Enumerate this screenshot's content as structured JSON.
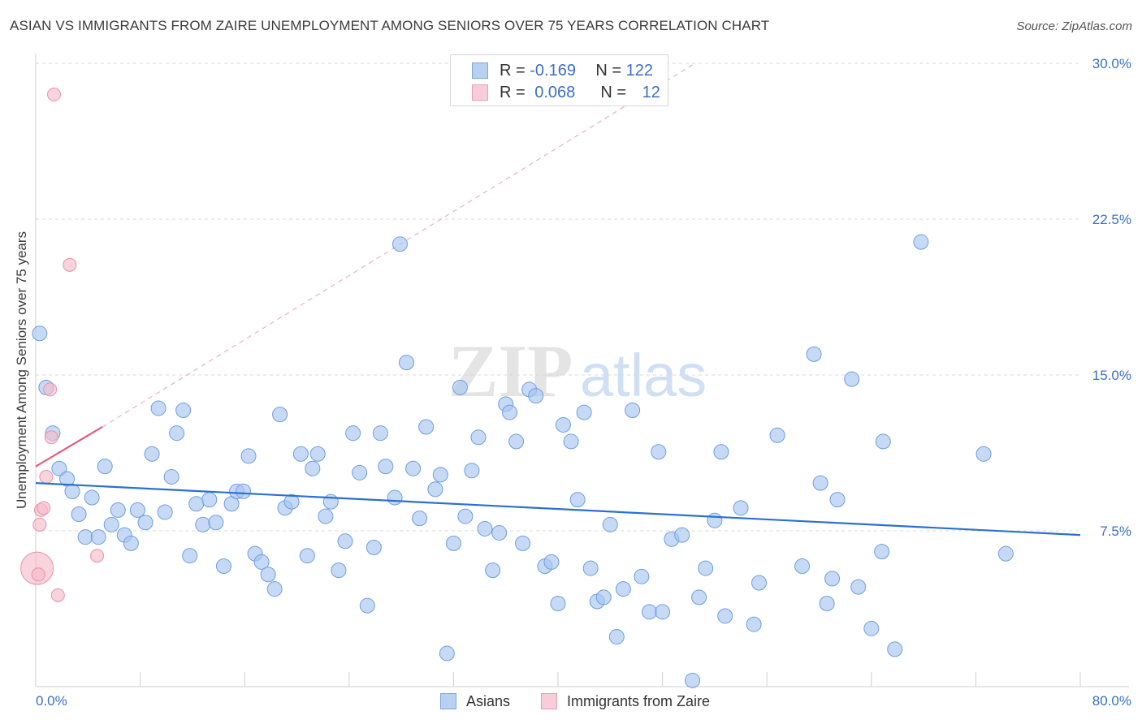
{
  "header": {
    "title": "ASIAN VS IMMIGRANTS FROM ZAIRE UNEMPLOYMENT AMONG SENIORS OVER 75 YEARS CORRELATION CHART",
    "source": "Source: ZipAtlas.com"
  },
  "watermark": {
    "zip": "ZIP",
    "atlas": "atlas"
  },
  "legend": {
    "asians": {
      "r_label": "R =",
      "r_value": "-0.169",
      "n_label": "N =",
      "n_value": "122"
    },
    "zaire": {
      "r_label": "R =",
      "r_value": "0.068",
      "n_label": "N =",
      "n_value": "12"
    }
  },
  "bottom_legend": {
    "asians": "Asians",
    "zaire": "Immigrants from Zaire"
  },
  "colors": {
    "asians_fill": "#a9c6ef",
    "asians_stroke": "#6d9ee0",
    "asians_line": "#2b70d0",
    "zaire_fill": "#f6bccb",
    "zaire_stroke": "#e892a9",
    "zaire_line": "#e0607e",
    "grid": "#d9d9d9",
    "tick_label": "#3a70c4"
  },
  "chart_data": {
    "type": "scatter",
    "title": "ASIAN VS IMMIGRANTS FROM ZAIRE UNEMPLOYMENT AMONG SENIORS OVER 75 YEARS CORRELATION CHART",
    "xlabel": "",
    "ylabel": "Unemployment Among Seniors over 75 years",
    "xlim": [
      0,
      80
    ],
    "ylim": [
      0,
      30
    ],
    "x_tick_labels": [
      "0.0%",
      "80.0%"
    ],
    "y_ticks": [
      7.5,
      15.0,
      22.5,
      30.0
    ],
    "y_tick_labels": [
      "7.5%",
      "15.0%",
      "22.5%",
      "30.0%"
    ],
    "grid": true,
    "legend_position": "top-center",
    "series": [
      {
        "name": "Asians",
        "r": -0.169,
        "n": 122,
        "trend": {
          "x": [
            0,
            80
          ],
          "y": [
            9.8,
            7.3
          ]
        },
        "points": [
          [
            0.3,
            17.0
          ],
          [
            0.8,
            14.4
          ],
          [
            1.3,
            12.2
          ],
          [
            1.8,
            10.5
          ],
          [
            2.4,
            10.0
          ],
          [
            2.8,
            9.4
          ],
          [
            3.3,
            8.3
          ],
          [
            3.8,
            7.2
          ],
          [
            4.3,
            9.1
          ],
          [
            4.8,
            7.2
          ],
          [
            5.3,
            10.6
          ],
          [
            5.8,
            7.8
          ],
          [
            6.3,
            8.5
          ],
          [
            6.8,
            7.3
          ],
          [
            7.3,
            6.9
          ],
          [
            7.8,
            8.5
          ],
          [
            8.4,
            7.9
          ],
          [
            8.9,
            11.2
          ],
          [
            9.4,
            13.4
          ],
          [
            9.9,
            8.4
          ],
          [
            10.4,
            10.1
          ],
          [
            10.8,
            12.2
          ],
          [
            11.3,
            13.3
          ],
          [
            11.8,
            6.3
          ],
          [
            12.3,
            8.8
          ],
          [
            12.8,
            7.8
          ],
          [
            13.3,
            9.0
          ],
          [
            13.8,
            7.9
          ],
          [
            14.4,
            5.8
          ],
          [
            15.0,
            8.8
          ],
          [
            15.4,
            9.4
          ],
          [
            15.9,
            9.4
          ],
          [
            16.3,
            11.1
          ],
          [
            16.8,
            6.4
          ],
          [
            17.3,
            6.0
          ],
          [
            17.8,
            5.4
          ],
          [
            18.3,
            4.7
          ],
          [
            18.7,
            13.1
          ],
          [
            19.1,
            8.6
          ],
          [
            19.6,
            8.9
          ],
          [
            20.3,
            11.2
          ],
          [
            20.8,
            6.3
          ],
          [
            21.2,
            10.5
          ],
          [
            21.6,
            11.2
          ],
          [
            22.2,
            8.2
          ],
          [
            22.6,
            8.9
          ],
          [
            23.2,
            5.6
          ],
          [
            23.7,
            7.0
          ],
          [
            24.3,
            12.2
          ],
          [
            24.8,
            10.3
          ],
          [
            25.4,
            3.9
          ],
          [
            25.9,
            6.7
          ],
          [
            26.4,
            12.2
          ],
          [
            26.8,
            10.6
          ],
          [
            27.5,
            9.1
          ],
          [
            27.9,
            21.3
          ],
          [
            28.4,
            15.6
          ],
          [
            28.9,
            10.5
          ],
          [
            29.4,
            8.1
          ],
          [
            29.9,
            12.5
          ],
          [
            30.6,
            9.5
          ],
          [
            31.0,
            10.2
          ],
          [
            31.5,
            1.6
          ],
          [
            32.0,
            6.9
          ],
          [
            32.5,
            14.4
          ],
          [
            32.9,
            8.2
          ],
          [
            33.4,
            10.4
          ],
          [
            33.9,
            12.0
          ],
          [
            34.4,
            7.6
          ],
          [
            35.0,
            5.6
          ],
          [
            35.5,
            7.4
          ],
          [
            36.0,
            13.6
          ],
          [
            36.3,
            13.2
          ],
          [
            36.8,
            11.8
          ],
          [
            37.3,
            6.9
          ],
          [
            37.8,
            14.3
          ],
          [
            38.3,
            14.0
          ],
          [
            39.0,
            5.8
          ],
          [
            39.5,
            6.0
          ],
          [
            40.0,
            4.0
          ],
          [
            40.4,
            12.6
          ],
          [
            41.0,
            11.8
          ],
          [
            41.5,
            9.0
          ],
          [
            42.0,
            13.2
          ],
          [
            42.5,
            5.7
          ],
          [
            43.0,
            4.1
          ],
          [
            43.5,
            4.3
          ],
          [
            44.0,
            7.8
          ],
          [
            44.5,
            2.4
          ],
          [
            45.0,
            4.7
          ],
          [
            45.7,
            13.3
          ],
          [
            46.4,
            5.3
          ],
          [
            47.0,
            3.6
          ],
          [
            47.7,
            11.3
          ],
          [
            48.0,
            3.6
          ],
          [
            48.7,
            7.1
          ],
          [
            49.5,
            7.3
          ],
          [
            50.3,
            0.3
          ],
          [
            50.8,
            4.3
          ],
          [
            51.3,
            5.7
          ],
          [
            52.0,
            8.0
          ],
          [
            52.5,
            11.3
          ],
          [
            52.8,
            3.4
          ],
          [
            54.0,
            8.6
          ],
          [
            55.0,
            3.0
          ],
          [
            55.4,
            5.0
          ],
          [
            56.8,
            12.1
          ],
          [
            58.7,
            5.8
          ],
          [
            59.6,
            16.0
          ],
          [
            60.1,
            9.8
          ],
          [
            60.6,
            4.0
          ],
          [
            61.0,
            5.2
          ],
          [
            61.4,
            9.0
          ],
          [
            62.5,
            14.8
          ],
          [
            63.0,
            4.8
          ],
          [
            64.0,
            2.8
          ],
          [
            65.8,
            1.8
          ],
          [
            64.8,
            6.5
          ],
          [
            64.9,
            11.8
          ],
          [
            67.8,
            21.4
          ],
          [
            72.6,
            11.2
          ],
          [
            74.3,
            6.4
          ]
        ]
      },
      {
        "name": "Immigrants from Zaire",
        "r": 0.068,
        "n": 12,
        "trend": {
          "x": [
            0,
            5.1
          ],
          "y": [
            10.6,
            12.5
          ]
        },
        "trend_extension": {
          "x": [
            5.1,
            50.5
          ],
          "y": [
            12.5,
            30.0
          ]
        },
        "points": [
          [
            0.1,
            5.7
          ],
          [
            0.4,
            8.5
          ],
          [
            0.6,
            8.6
          ],
          [
            0.8,
            10.1
          ],
          [
            1.1,
            14.3
          ],
          [
            1.2,
            12.0
          ],
          [
            1.4,
            28.5
          ],
          [
            1.7,
            4.4
          ],
          [
            2.6,
            20.3
          ],
          [
            4.7,
            6.3
          ],
          [
            0.3,
            7.8
          ],
          [
            0.2,
            5.4
          ]
        ]
      }
    ]
  }
}
